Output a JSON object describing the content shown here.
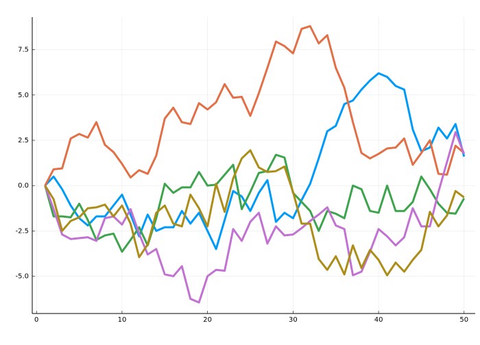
{
  "chart_data": {
    "type": "line",
    "x": [
      1,
      2,
      3,
      4,
      5,
      6,
      7,
      8,
      9,
      10,
      11,
      12,
      13,
      14,
      15,
      16,
      17,
      18,
      19,
      20,
      21,
      22,
      23,
      24,
      25,
      26,
      27,
      28,
      29,
      30,
      31,
      32,
      33,
      34,
      35,
      36,
      37,
      38,
      39,
      40,
      41,
      42,
      43,
      44,
      45,
      46,
      47,
      48,
      49,
      50
    ],
    "series": [
      {
        "color": "#009af9",
        "values": [
          0,
          0.5,
          -0.2,
          -1.1,
          -1.8,
          -2.2,
          -1.7,
          -1.7,
          -1.1,
          -0.5,
          -1.6,
          -2.8,
          -1.6,
          -2.5,
          -2.3,
          -2.3,
          -1.4,
          -2.1,
          -1.5,
          -2.5,
          -3.5,
          -1.9,
          -0.3,
          -0.6,
          -1.4,
          -0.4,
          0.3,
          -2.0,
          -1.5,
          -1.8,
          -0.8,
          0.1,
          1.5,
          3.0,
          3.3,
          4.5,
          4.7,
          5.3,
          5.8,
          6.2,
          6.0,
          5.5,
          5.3,
          3.1,
          1.9,
          2.1,
          3.2,
          2.6,
          3.4,
          1.6
        ]
      },
      {
        "color": "#e26f46",
        "values": [
          0,
          0.9,
          0.95,
          2.6,
          2.85,
          2.65,
          3.5,
          2.25,
          1.85,
          1.2,
          0.45,
          0.85,
          0.65,
          1.65,
          3.7,
          4.3,
          3.5,
          3.4,
          4.55,
          4.2,
          4.6,
          5.6,
          4.85,
          4.9,
          3.85,
          5.1,
          6.5,
          7.95,
          7.7,
          7.3,
          8.65,
          8.8,
          7.85,
          8.3,
          6.5,
          5.4,
          3.5,
          1.8,
          1.5,
          1.75,
          2.05,
          2.1,
          2.6,
          1.15,
          1.8,
          2.5,
          0.65,
          0.6,
          2.2,
          1.8
        ]
      },
      {
        "color": "#3da44d",
        "values": [
          0,
          -1.7,
          -1.7,
          -1.75,
          -1.0,
          -1.9,
          -3.0,
          -2.75,
          -2.65,
          -3.65,
          -3.0,
          -2.3,
          -3.3,
          -1.8,
          0.1,
          -0.4,
          -0.1,
          -0.1,
          0.75,
          0.0,
          0.05,
          0.6,
          1.15,
          -1.3,
          -0.35,
          0.7,
          0.8,
          1.7,
          1.55,
          -0.4,
          -0.9,
          -1.4,
          -2.5,
          -1.4,
          -1.55,
          -1.8,
          0.0,
          -0.2,
          -1.4,
          -1.5,
          0.0,
          -1.4,
          -1.4,
          -0.9,
          0.5,
          -0.2,
          -1.0,
          -1.5,
          -1.55,
          -0.7
        ]
      },
      {
        "color": "#c271d2",
        "values": [
          0,
          -1.3,
          -2.7,
          -2.95,
          -2.9,
          -2.85,
          -3.05,
          -1.8,
          -1.7,
          -2.15,
          -1.3,
          -2.65,
          -3.8,
          -3.5,
          -4.9,
          -5.0,
          -4.45,
          -6.25,
          -6.45,
          -5.0,
          -4.65,
          -4.7,
          -2.4,
          -3.05,
          -2.0,
          -1.5,
          -3.2,
          -2.25,
          -2.75,
          -2.7,
          -2.35,
          -1.95,
          -1.6,
          -1.2,
          -2.2,
          -2.4,
          -4.95,
          -4.75,
          -3.65,
          -2.4,
          -2.8,
          -3.3,
          -2.85,
          -1.25,
          -2.25,
          -2.25,
          -0.35,
          1.3,
          2.95,
          1.75
        ]
      },
      {
        "color": "#ac8d18",
        "values": [
          0,
          -0.75,
          -2.5,
          -1.95,
          -1.75,
          -1.25,
          -1.2,
          -1.05,
          -1.7,
          -1.1,
          -2.1,
          -3.95,
          -3.25,
          -1.5,
          -1.1,
          -2.1,
          -2.25,
          -0.5,
          -1.25,
          -2.25,
          0.1,
          -1.45,
          0.4,
          1.5,
          1.95,
          1.0,
          0.75,
          0.8,
          1.05,
          -0.35,
          -2.1,
          -2.1,
          -4.05,
          -4.65,
          -3.9,
          -4.9,
          -3.3,
          -4.55,
          -3.55,
          -4.1,
          -4.95,
          -4.25,
          -4.75,
          -4.1,
          -3.55,
          -1.45,
          -2.25,
          -1.65,
          -0.3,
          -0.65
        ]
      }
    ],
    "xlim": [
      -0.5,
      51.3
    ],
    "xticks": [
      0,
      10,
      20,
      30,
      40,
      50
    ],
    "ylim": [
      -7.06,
      9.3
    ],
    "yticks": [
      {
        "value": -5,
        "label": "-5.0"
      },
      -2.5,
      {
        "value": 0,
        "label": "0.0"
      },
      2.5,
      {
        "value": 5,
        "label": "5.0"
      },
      7.5
    ],
    "grid": true
  }
}
